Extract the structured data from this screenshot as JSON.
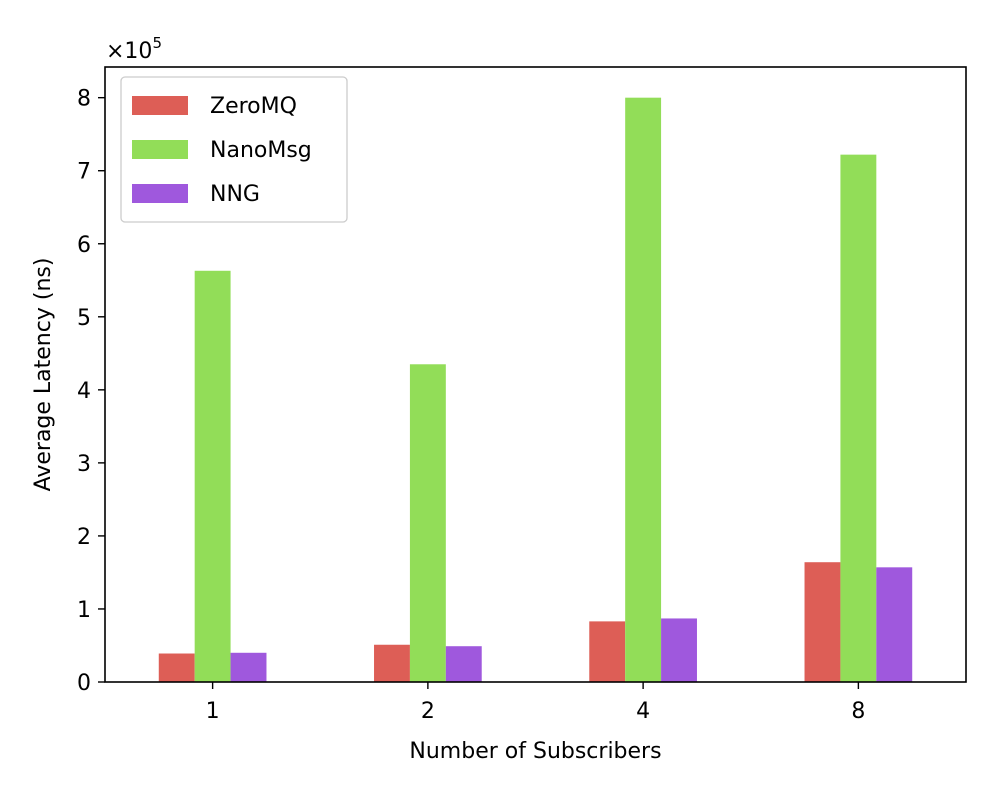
{
  "chart_data": {
    "type": "bar",
    "categories": [
      "1",
      "2",
      "4",
      "8"
    ],
    "series": [
      {
        "name": "ZeroMQ",
        "color": "#dd5e56",
        "values": [
          39000,
          51000,
          83000,
          164000
        ]
      },
      {
        "name": "NanoMsg",
        "color": "#92dd58",
        "values": [
          563000,
          435000,
          800000,
          722000
        ]
      },
      {
        "name": "NNG",
        "color": "#9f58dd",
        "values": [
          40000,
          49000,
          87000,
          157000
        ]
      }
    ],
    "xlabel": "Number of Subscribers",
    "ylabel": "Average Latency (ns)",
    "ylim": [
      0,
      842000
    ],
    "yticks": [
      0,
      1,
      2,
      3,
      4,
      5,
      6,
      7,
      8
    ],
    "y_scale_multiplier_base": "×10",
    "y_scale_multiplier_exponent": "5",
    "legend_position": "upper-left",
    "grid": false
  }
}
